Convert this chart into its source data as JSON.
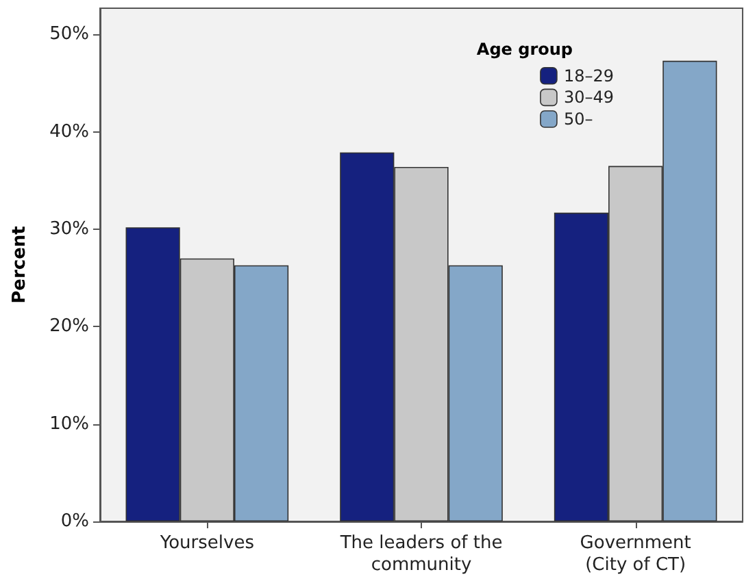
{
  "chart_data": {
    "type": "bar",
    "ylabel": "Percent",
    "legend_title": "Age group",
    "categories": [
      "Yourselves",
      "The leaders of the\ncommunity",
      "Government\n(City of CT)"
    ],
    "series": [
      {
        "name": "18–29",
        "color": "#15217f",
        "values": [
          30.2,
          37.9,
          31.7
        ]
      },
      {
        "name": "30–49",
        "color": "#c8c8c8",
        "values": [
          27.0,
          36.4,
          36.5
        ]
      },
      {
        "name": "50–",
        "color": "#84a7c8",
        "values": [
          26.3,
          26.3,
          47.3
        ]
      }
    ],
    "ylim": [
      0,
      52.7
    ],
    "yticks": [
      {
        "value": 0,
        "label": "0%"
      },
      {
        "value": 10,
        "label": "10%"
      },
      {
        "value": 20,
        "label": "20%"
      },
      {
        "value": 30,
        "label": "30%"
      },
      {
        "value": 40,
        "label": "40%"
      },
      {
        "value": 50,
        "label": "50%"
      }
    ],
    "grid": false,
    "legend": "top right"
  }
}
